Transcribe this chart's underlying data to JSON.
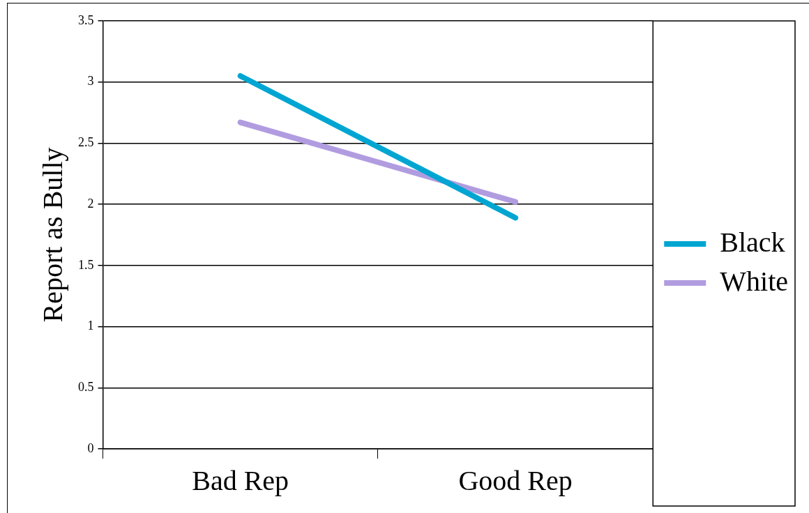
{
  "chart_data": {
    "type": "line",
    "ylabel": "Report as Bully",
    "categories": [
      "Bad Rep",
      "Good Rep"
    ],
    "series": [
      {
        "name": "Black",
        "color": "#00a6d1",
        "values": [
          3.05,
          1.89
        ]
      },
      {
        "name": "White",
        "color": "#b19ce0",
        "values": [
          2.67,
          2.02
        ]
      }
    ],
    "ylim": [
      0,
      3.5
    ],
    "yticks": [
      0,
      0.5,
      1,
      1.5,
      2,
      2.5,
      3,
      3.5
    ],
    "grid": "y",
    "legend": "right",
    "marker": "none",
    "line_style": "solid"
  }
}
